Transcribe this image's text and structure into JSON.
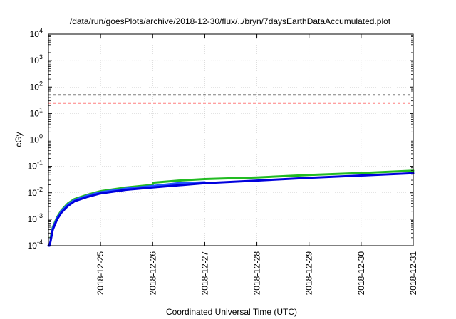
{
  "chart_data": {
    "type": "line",
    "title": "/data/run/goesPlots/archive/2018-12-30/flux/../bryn/7daysEarthDataAccumulated.plot",
    "xlabel": "Coordinated Universal Time (UTC)",
    "ylabel": "cGy",
    "yscale": "log",
    "ylim": [
      0.0001,
      10000
    ],
    "xlim": [
      "2018-12-24",
      "2018-12-31"
    ],
    "x_ticks": [
      "2018-12-25",
      "2018-12-26",
      "2018-12-27",
      "2018-12-28",
      "2018-12-29",
      "2018-12-30",
      "2018-12-31"
    ],
    "y_ticks": [
      {
        "base": "10",
        "exp": "-4"
      },
      {
        "base": "10",
        "exp": "-3"
      },
      {
        "base": "10",
        "exp": "-2"
      },
      {
        "base": "10",
        "exp": "-1"
      },
      {
        "base": "10",
        "exp": "0"
      },
      {
        "base": "10",
        "exp": "1"
      },
      {
        "base": "10",
        "exp": "2"
      },
      {
        "base": "10",
        "exp": "3"
      },
      {
        "base": "10",
        "exp": "4"
      }
    ],
    "grid": true,
    "legend": "none",
    "thresholds": [
      {
        "value": 50,
        "color": "#000000",
        "style": "dashed"
      },
      {
        "value": 25,
        "color": "#ff0000",
        "style": "dashed"
      }
    ],
    "series": [
      {
        "color": "#22bb22",
        "x": [
          "2018-12-24T01:00",
          "2018-12-24T02:00",
          "2018-12-24T04:00",
          "2018-12-24T06:00",
          "2018-12-24T09:00",
          "2018-12-24T12:00",
          "2018-12-24T18:00",
          "2018-12-25T00:00",
          "2018-12-25T12:00",
          "2018-12-26T00:00",
          "2018-12-26T00:05",
          "2018-12-26T12:00",
          "2018-12-27T00:00",
          "2018-12-28T00:00",
          "2018-12-29T00:00",
          "2018-12-30T00:00",
          "2018-12-31T00:00"
        ],
        "values": [
          0.0002,
          0.0005,
          0.0012,
          0.0022,
          0.004,
          0.0058,
          0.0085,
          0.0115,
          0.016,
          0.02,
          0.024,
          0.029,
          0.033,
          0.038,
          0.047,
          0.056,
          0.068
        ]
      },
      {
        "color": "#2255ff",
        "x": [
          "2018-12-24T01:00",
          "2018-12-24T02:00",
          "2018-12-24T04:00",
          "2018-12-24T06:00",
          "2018-12-24T09:00",
          "2018-12-24T12:00",
          "2018-12-24T18:00",
          "2018-12-25T00:00",
          "2018-12-25T12:00",
          "2018-12-26T00:00",
          "2018-12-26T12:00",
          "2018-12-27T00:00"
        ],
        "values": [
          0.00018,
          0.00045,
          0.0011,
          0.002,
          0.0036,
          0.0053,
          0.0078,
          0.0105,
          0.0145,
          0.018,
          0.023,
          0.025
        ]
      },
      {
        "color": "#0000dd",
        "x": [
          "2018-12-24T00:00",
          "2018-12-24T00:30",
          "2018-12-24T01:00",
          "2018-12-24T02:00",
          "2018-12-24T04:00",
          "2018-12-24T06:00",
          "2018-12-24T09:00",
          "2018-12-24T12:00",
          "2018-12-24T18:00",
          "2018-12-25T00:00",
          "2018-12-25T12:00",
          "2018-12-26T00:00",
          "2018-12-27T00:00",
          "2018-12-28T00:00",
          "2018-12-29T00:00",
          "2018-12-30T00:00",
          "2018-12-31T00:00"
        ],
        "values": [
          0.0001,
          0.0001,
          0.00015,
          0.0004,
          0.001,
          0.0018,
          0.0032,
          0.0048,
          0.007,
          0.0095,
          0.013,
          0.016,
          0.023,
          0.029,
          0.037,
          0.045,
          0.055
        ]
      }
    ]
  }
}
